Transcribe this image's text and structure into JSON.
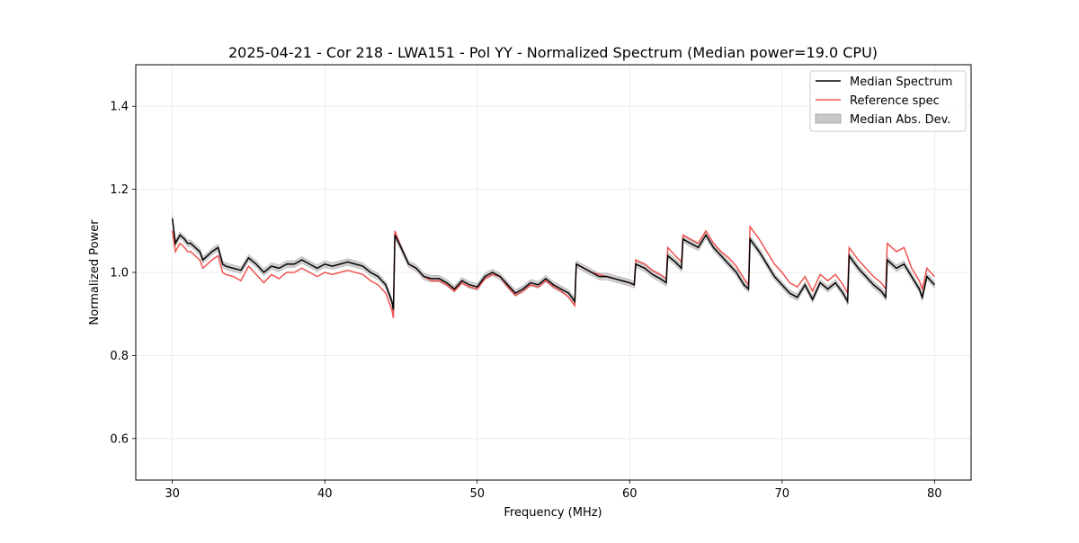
{
  "chart_data": {
    "type": "line",
    "title": "2025-04-21 - Cor 218 - LWA151 - Pol YY - Normalized Spectrum (Median power=19.0 CPU)",
    "xlabel": "Frequency (MHz)",
    "ylabel": "Normalized Power",
    "xlim": [
      27.6,
      82.4
    ],
    "ylim": [
      0.5,
      1.5
    ],
    "xticks": [
      30,
      40,
      50,
      60,
      70,
      80
    ],
    "yticks": [
      0.6,
      0.8,
      1.0,
      1.2,
      1.4
    ],
    "xtick_labels": [
      "30",
      "40",
      "50",
      "60",
      "70",
      "80"
    ],
    "ytick_labels": [
      "0.6",
      "0.8",
      "1.0",
      "1.2",
      "1.4"
    ],
    "grid": true,
    "legend_position": "top-right",
    "legend": [
      {
        "label": "Median Spectrum",
        "kind": "line",
        "color": "#000000"
      },
      {
        "label": "Reference spec",
        "kind": "line",
        "color": "#ef5350"
      },
      {
        "label": "Median Abs. Dev.",
        "kind": "band",
        "color": "#c8c8c8"
      }
    ],
    "mad_halfwidth": 0.008,
    "series": [
      {
        "name": "Median Spectrum",
        "color": "#000000",
        "x": [
          30.0,
          30.2,
          30.5,
          30.8,
          31.0,
          31.2,
          31.5,
          31.8,
          32.0,
          32.3,
          32.6,
          33.0,
          33.3,
          33.5,
          34.0,
          34.5,
          35.0,
          35.5,
          36.0,
          36.5,
          37.0,
          37.5,
          38.0,
          38.5,
          39.0,
          39.5,
          40.0,
          40.5,
          41.0,
          41.5,
          42.0,
          42.5,
          43.0,
          43.5,
          44.0,
          44.4,
          44.5,
          44.6,
          45.0,
          45.5,
          46.0,
          46.5,
          47.0,
          47.5,
          48.0,
          48.5,
          49.0,
          49.5,
          50.0,
          50.5,
          51.0,
          51.5,
          52.0,
          52.5,
          53.0,
          53.5,
          54.0,
          54.5,
          55.0,
          55.5,
          56.0,
          56.4,
          56.5,
          57.0,
          57.5,
          58.0,
          58.5,
          59.0,
          59.5,
          60.0,
          60.3,
          60.4,
          61.0,
          61.5,
          62.0,
          62.4,
          62.5,
          63.0,
          63.4,
          63.5,
          64.0,
          64.5,
          65.0,
          65.5,
          66.0,
          66.5,
          67.0,
          67.5,
          67.8,
          67.9,
          68.5,
          69.0,
          69.5,
          70.0,
          70.5,
          71.0,
          71.5,
          72.0,
          72.5,
          73.0,
          73.5,
          74.0,
          74.3,
          74.4,
          75.0,
          75.5,
          76.0,
          76.5,
          76.8,
          76.9,
          77.5,
          78.0,
          78.5,
          79.0,
          79.2,
          79.5,
          80.0
        ],
        "values": [
          1.13,
          1.07,
          1.09,
          1.08,
          1.07,
          1.07,
          1.06,
          1.05,
          1.03,
          1.04,
          1.05,
          1.06,
          1.02,
          1.015,
          1.01,
          1.005,
          1.035,
          1.02,
          1.0,
          1.015,
          1.01,
          1.02,
          1.02,
          1.03,
          1.02,
          1.01,
          1.02,
          1.015,
          1.02,
          1.025,
          1.02,
          1.015,
          1.0,
          0.99,
          0.97,
          0.93,
          0.91,
          1.09,
          1.06,
          1.02,
          1.01,
          0.99,
          0.985,
          0.985,
          0.975,
          0.96,
          0.98,
          0.97,
          0.965,
          0.99,
          1.0,
          0.99,
          0.97,
          0.95,
          0.96,
          0.975,
          0.97,
          0.985,
          0.97,
          0.96,
          0.95,
          0.93,
          1.02,
          1.01,
          1.0,
          0.99,
          0.99,
          0.985,
          0.98,
          0.975,
          0.97,
          1.02,
          1.01,
          0.995,
          0.985,
          0.975,
          1.04,
          1.025,
          1.01,
          1.08,
          1.07,
          1.06,
          1.09,
          1.06,
          1.04,
          1.02,
          1.0,
          0.97,
          0.96,
          1.08,
          1.05,
          1.02,
          0.99,
          0.97,
          0.95,
          0.94,
          0.97,
          0.935,
          0.975,
          0.96,
          0.975,
          0.95,
          0.93,
          1.04,
          1.01,
          0.99,
          0.97,
          0.955,
          0.94,
          1.03,
          1.01,
          1.02,
          0.99,
          0.96,
          0.94,
          0.99,
          0.97
        ]
      },
      {
        "name": "Reference spec",
        "color": "#ef5350",
        "x": [
          30.0,
          30.2,
          30.5,
          30.8,
          31.0,
          31.2,
          31.5,
          31.8,
          32.0,
          32.3,
          32.6,
          33.0,
          33.3,
          33.5,
          34.0,
          34.5,
          35.0,
          35.5,
          36.0,
          36.5,
          37.0,
          37.5,
          38.0,
          38.5,
          39.0,
          39.5,
          40.0,
          40.5,
          41.0,
          41.5,
          42.0,
          42.5,
          43.0,
          43.5,
          44.0,
          44.4,
          44.5,
          44.6,
          45.0,
          45.5,
          46.0,
          46.5,
          47.0,
          47.5,
          48.0,
          48.5,
          49.0,
          49.5,
          50.0,
          50.5,
          51.0,
          51.5,
          52.0,
          52.5,
          53.0,
          53.5,
          54.0,
          54.5,
          55.0,
          55.5,
          56.0,
          56.4,
          56.5,
          57.0,
          57.5,
          58.0,
          58.5,
          59.0,
          59.5,
          60.0,
          60.3,
          60.4,
          61.0,
          61.5,
          62.0,
          62.4,
          62.5,
          63.0,
          63.4,
          63.5,
          64.0,
          64.5,
          65.0,
          65.5,
          66.0,
          66.5,
          67.0,
          67.5,
          67.8,
          67.9,
          68.5,
          69.0,
          69.5,
          70.0,
          70.5,
          71.0,
          71.5,
          72.0,
          72.5,
          73.0,
          73.5,
          74.0,
          74.3,
          74.4,
          75.0,
          75.5,
          76.0,
          76.5,
          76.8,
          76.9,
          77.5,
          78.0,
          78.5,
          79.0,
          79.2,
          79.5,
          80.0
        ],
        "values": [
          1.1,
          1.05,
          1.07,
          1.06,
          1.05,
          1.05,
          1.04,
          1.03,
          1.01,
          1.02,
          1.03,
          1.04,
          1.0,
          0.995,
          0.99,
          0.98,
          1.015,
          0.995,
          0.975,
          0.995,
          0.985,
          1.0,
          1.0,
          1.01,
          1.0,
          0.99,
          1.0,
          0.995,
          1.0,
          1.005,
          1.0,
          0.995,
          0.98,
          0.97,
          0.95,
          0.91,
          0.89,
          1.1,
          1.06,
          1.02,
          1.01,
          0.99,
          0.98,
          0.98,
          0.97,
          0.955,
          0.975,
          0.965,
          0.96,
          0.985,
          0.995,
          0.99,
          0.965,
          0.945,
          0.955,
          0.97,
          0.965,
          0.98,
          0.965,
          0.955,
          0.94,
          0.92,
          1.02,
          1.01,
          1.0,
          0.995,
          0.99,
          0.985,
          0.98,
          0.975,
          0.97,
          1.03,
          1.02,
          1.005,
          0.995,
          0.985,
          1.06,
          1.04,
          1.025,
          1.09,
          1.08,
          1.07,
          1.1,
          1.07,
          1.05,
          1.035,
          1.015,
          0.985,
          0.97,
          1.11,
          1.08,
          1.05,
          1.02,
          1.0,
          0.975,
          0.965,
          0.99,
          0.955,
          0.995,
          0.98,
          0.995,
          0.97,
          0.95,
          1.06,
          1.03,
          1.01,
          0.99,
          0.975,
          0.96,
          1.07,
          1.05,
          1.06,
          1.01,
          0.98,
          0.96,
          1.01,
          0.99
        ]
      }
    ]
  }
}
